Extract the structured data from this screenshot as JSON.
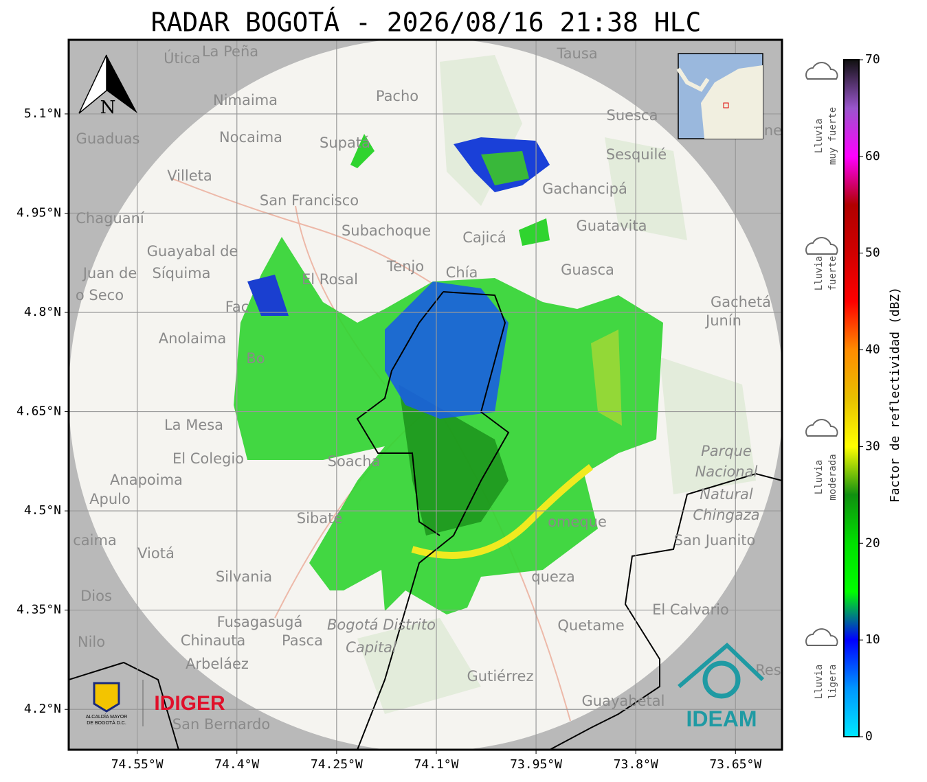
{
  "title": "RADAR BOGOTÁ - 2026/08/16 21:38 HLC",
  "map": {
    "xlim": [
      -74.653,
      -73.58
    ],
    "ylim": [
      4.139,
      5.212
    ],
    "xticks": [
      {
        "value": -74.55,
        "label": "74.55°W"
      },
      {
        "value": -74.4,
        "label": "74.4°W"
      },
      {
        "value": -74.25,
        "label": "74.25°W"
      },
      {
        "value": -74.1,
        "label": "74.1°W"
      },
      {
        "value": -73.95,
        "label": "73.95°W"
      },
      {
        "value": -73.8,
        "label": "73.8°W"
      },
      {
        "value": -73.65,
        "label": "73.65°W"
      }
    ],
    "yticks": [
      {
        "value": 5.1,
        "label": "5.1°N"
      },
      {
        "value": 4.95,
        "label": "4.95°N"
      },
      {
        "value": 4.8,
        "label": "4.8°N"
      },
      {
        "value": 4.65,
        "label": "4.65°N"
      },
      {
        "value": 4.5,
        "label": "4.5°N"
      },
      {
        "value": 4.35,
        "label": "4.35°N"
      },
      {
        "value": 4.2,
        "label": "4.2°N"
      }
    ],
    "grid": true,
    "places": [
      "Útica",
      "La Peña",
      "Tausa",
      "Pacho",
      "Nimaima",
      "Suesca",
      "Guaduas",
      "Nocaima",
      "Supatá",
      "Sesquilé",
      "Villeta",
      "Gachancipá",
      "San Francisco",
      "Chaguaní",
      "Guatavita",
      "Subachoque",
      "Cajicá",
      "Guayabal de",
      "Síquima",
      "Tenjo",
      "Chía",
      "Guasca",
      "Juan de",
      "El Rosal",
      "o Seco",
      "Gachetá",
      "Junín",
      "Fac",
      "Anolaima",
      "Bo",
      "La Mesa",
      "Parque",
      "Nacional",
      "Natural",
      "Chingaza",
      "El Colegio",
      "Soacha",
      "Anapoima",
      "Apulo",
      "Sibaté",
      "omeque",
      "San Juanito",
      "caima",
      "Viotá",
      "queza",
      "Silvania",
      "Dios",
      "El Calvario",
      "Fusagasugá",
      "Bogotá Distrito",
      "Capital",
      "Quetame",
      "Nilo",
      "Chinauta",
      "Pasca",
      "Arbeláez",
      "Gutiérrez",
      "Res",
      "Guayabetal",
      "San Bernardo",
      "ne"
    ]
  },
  "north_label": "N",
  "logos": {
    "alcaldia": [
      "ALCALDÍA MAYOR",
      "DE BOGOTÁ D.C."
    ],
    "idiger": "IDIGER",
    "ideam": "IDEAM"
  },
  "colorbar": {
    "lim": [
      0,
      70
    ],
    "ticks": [
      0,
      10,
      20,
      30,
      40,
      50,
      60,
      70
    ],
    "label": "Factor de reflectividad (dBZ)",
    "colors": [
      "#00e8ff",
      "#0096ff",
      "#0000ff",
      "#00ff00",
      "#00e000",
      "#109010",
      "#ffff00",
      "#e8c000",
      "#ff8c00",
      "#ff0000",
      "#d00000",
      "#b00000",
      "#ff00ff",
      "#9a55cc",
      "#101010"
    ]
  },
  "rain_levels": [
    [
      "Lluvia",
      "muy fuerte"
    ],
    [
      "Lluvia",
      "fuerte"
    ],
    [
      "Lluvia",
      "moderada"
    ],
    [
      "Lluvia",
      "ligera"
    ]
  ]
}
